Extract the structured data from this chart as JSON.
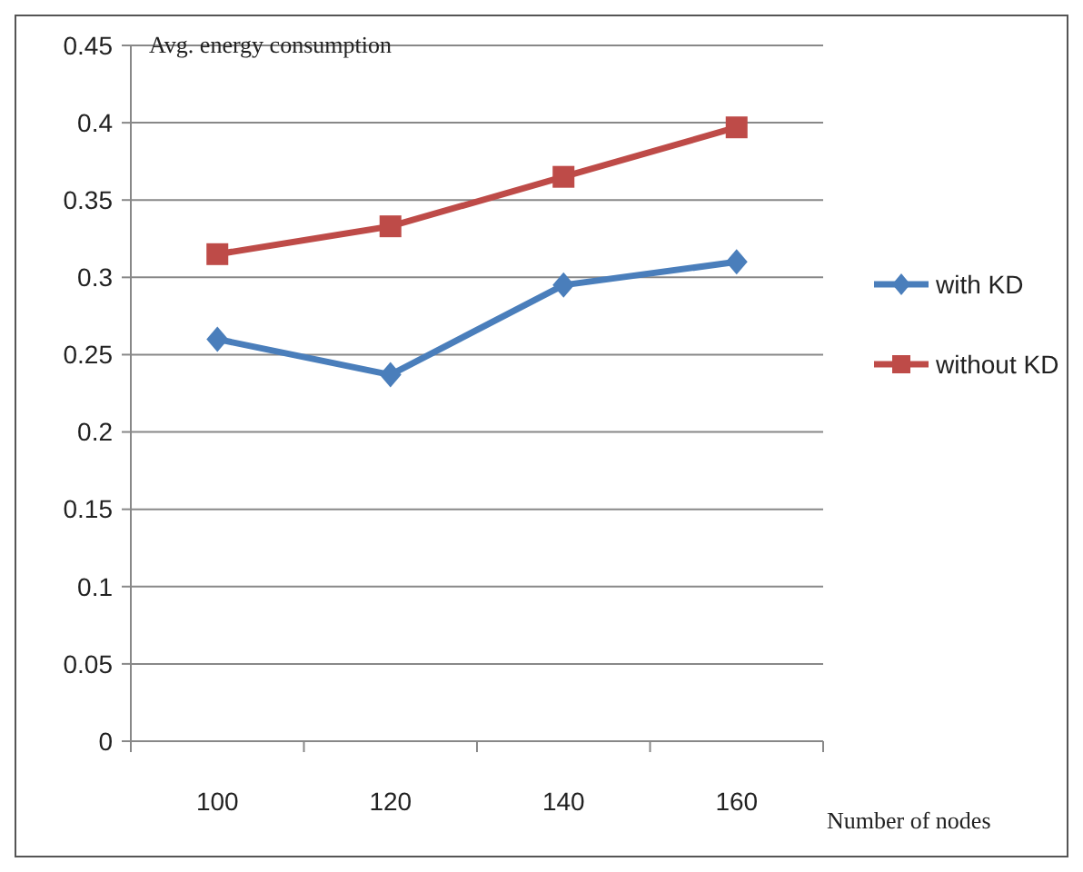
{
  "chart_data": {
    "type": "line",
    "ylabel": "Avg. energy consumption",
    "xlabel": "Number of nodes",
    "categories": [
      "100",
      "120",
      "140",
      "160"
    ],
    "series": [
      {
        "name": "with KD",
        "color": "#4a7ebb",
        "marker": "diamond",
        "values": [
          0.26,
          0.237,
          0.295,
          0.31
        ]
      },
      {
        "name": "without KD",
        "color": "#be4b48",
        "marker": "square",
        "values": [
          0.315,
          0.333,
          0.365,
          0.397
        ]
      }
    ],
    "ylim": [
      0,
      0.45
    ],
    "yticks": [
      0,
      0.05,
      0.1,
      0.15,
      0.2,
      0.25,
      0.3,
      0.35,
      0.4,
      0.45
    ],
    "grid": "y",
    "legend": "right",
    "line_style": "solid"
  }
}
